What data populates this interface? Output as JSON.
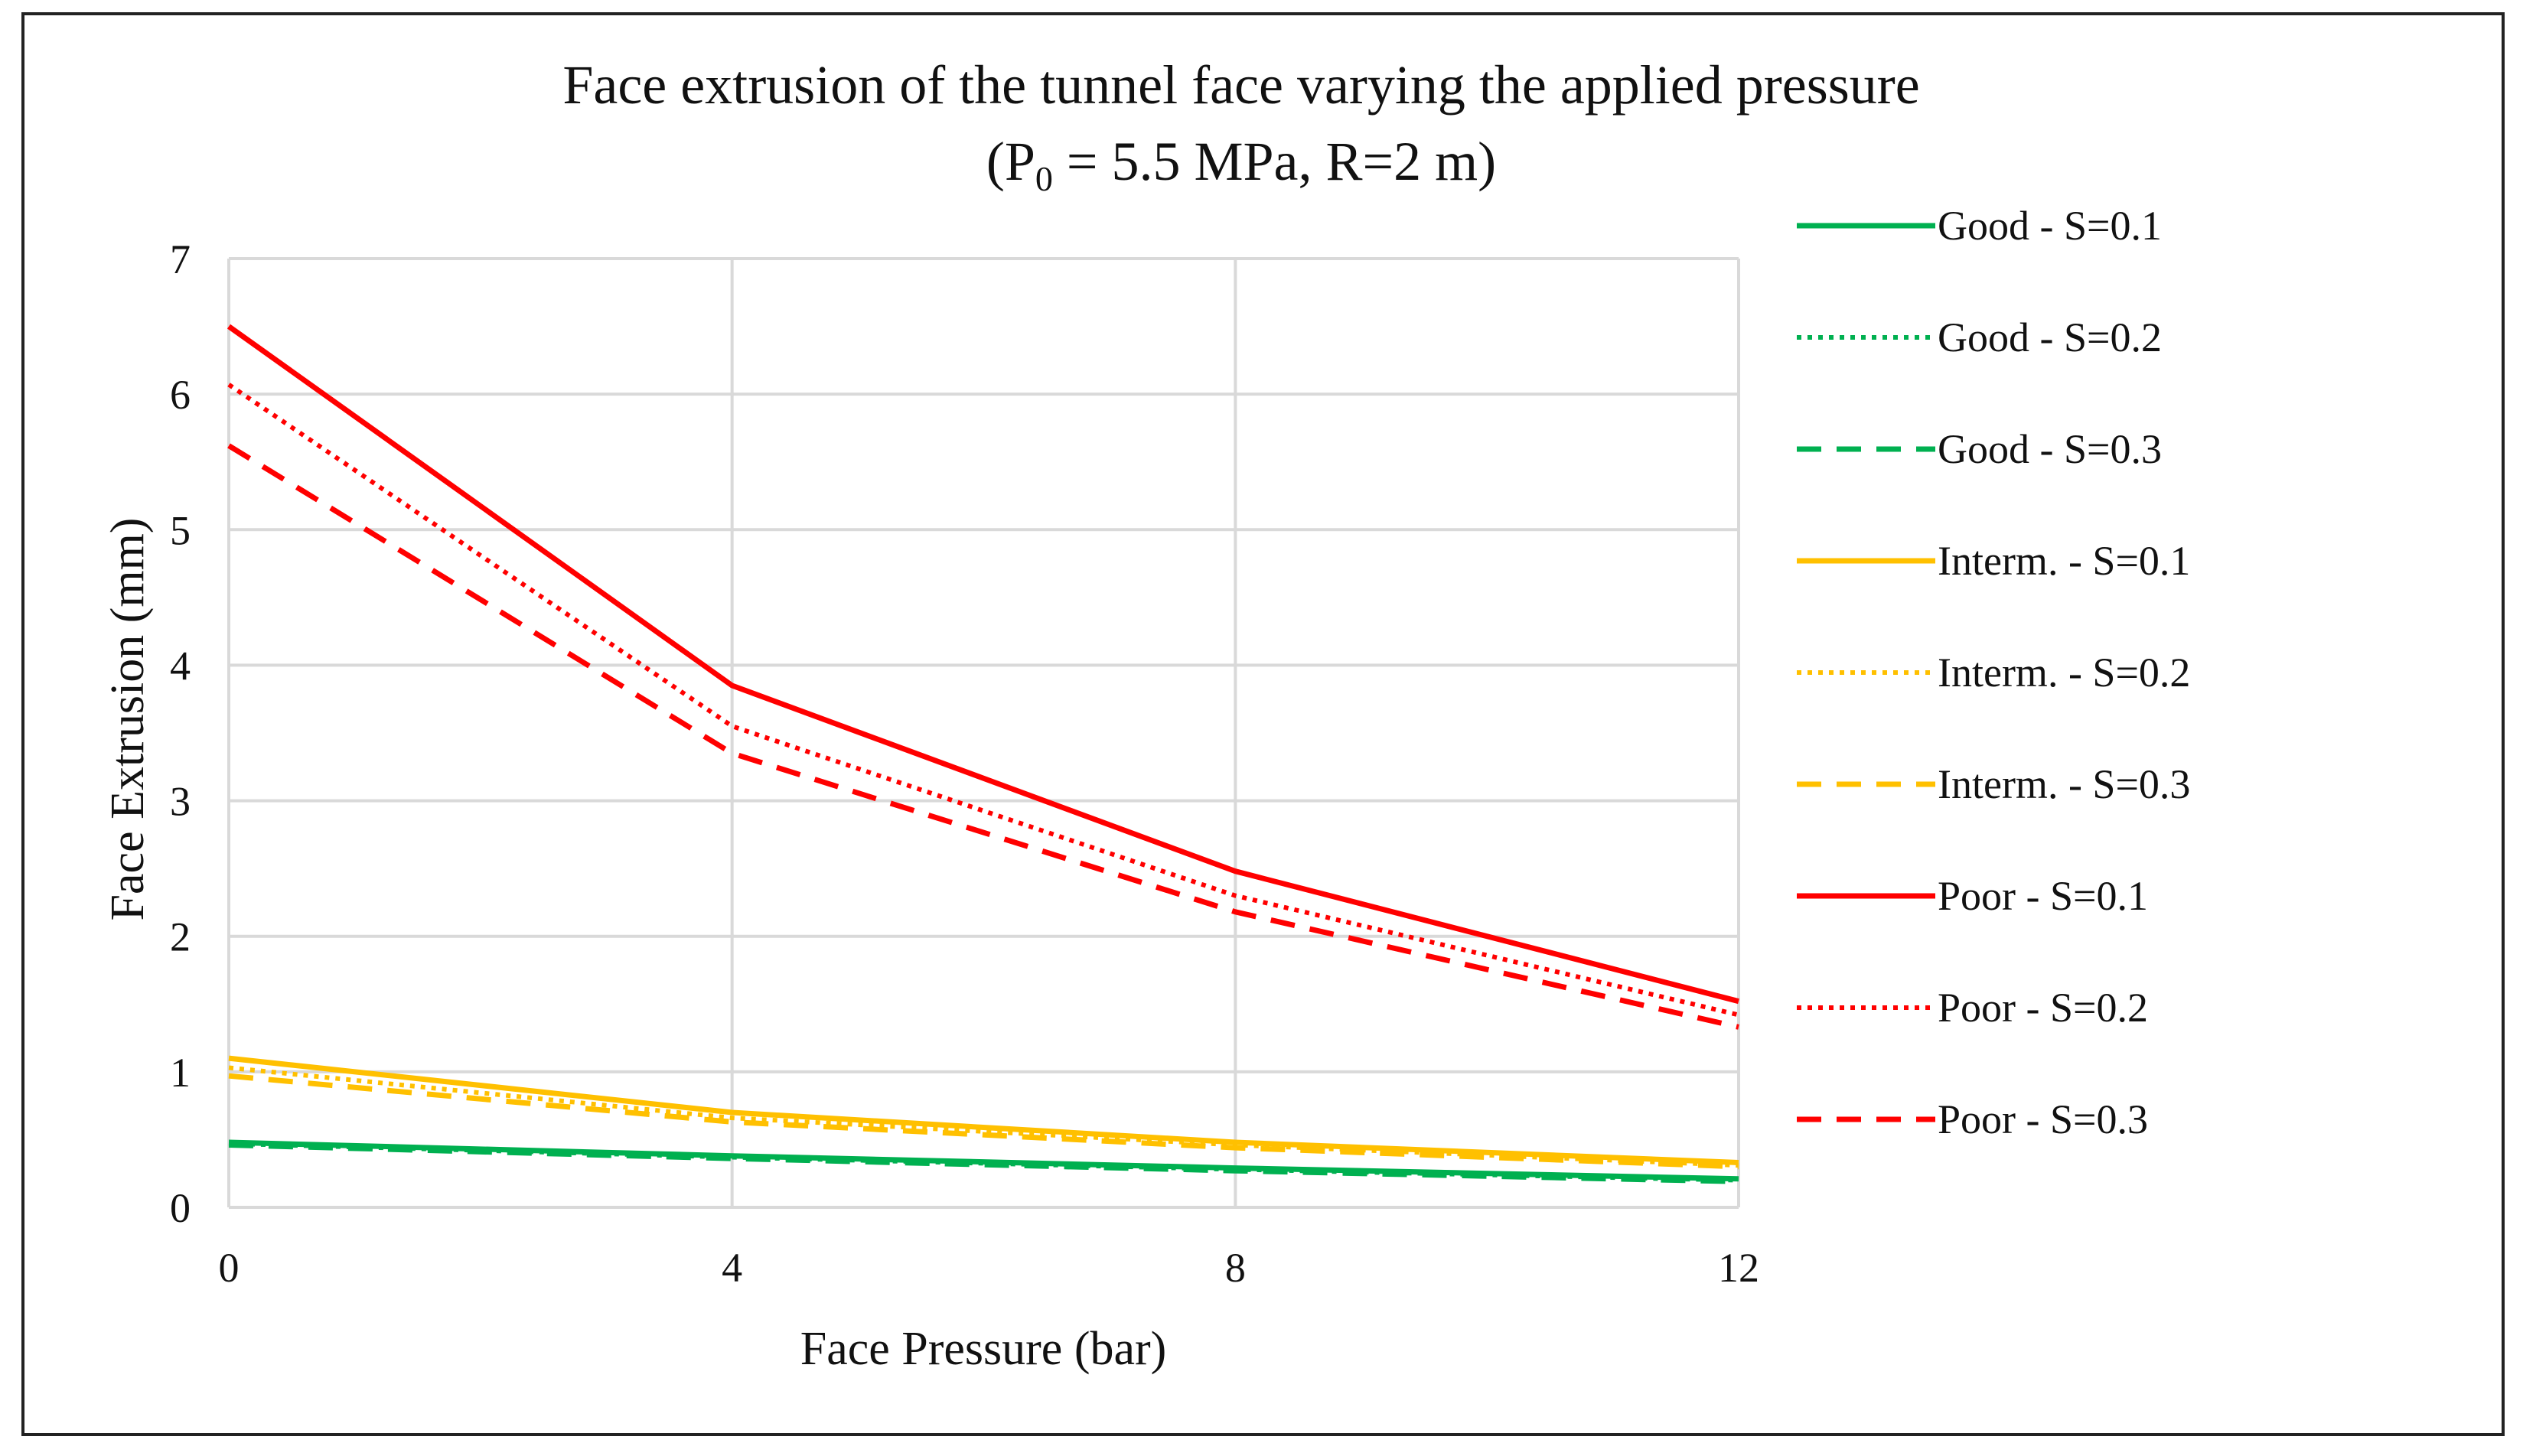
{
  "chart_data": {
    "type": "line",
    "title_main": "Face extrusion of the tunnel face varying the applied pressure",
    "title_sub_prefix": "(P",
    "title_sub_subscript": "0",
    "title_sub_suffix": " = 5.5 MPa, R=2 m)",
    "xlabel": "Face Pressure (bar)",
    "ylabel": "Face Extrusion (mm)",
    "x": [
      0,
      4,
      8,
      12
    ],
    "xlim": [
      0,
      12
    ],
    "ylim": [
      0,
      7
    ],
    "x_ticks": [
      0,
      4,
      8,
      12
    ],
    "y_ticks": [
      0,
      1,
      2,
      3,
      4,
      5,
      6,
      7
    ],
    "grid": true,
    "legend_position": "right",
    "series": [
      {
        "name": "Good - S=0.1",
        "color": "#00b050",
        "dash": "solid",
        "values": [
          0.48,
          0.38,
          0.29,
          0.21
        ]
      },
      {
        "name": "Good - S=0.2",
        "color": "#00b050",
        "dash": "dotted",
        "values": [
          0.47,
          0.37,
          0.28,
          0.2
        ]
      },
      {
        "name": "Good - S=0.3",
        "color": "#00b050",
        "dash": "dashed",
        "values": [
          0.46,
          0.36,
          0.27,
          0.19
        ]
      },
      {
        "name": "Interm. - S=0.1",
        "color": "#ffc000",
        "dash": "solid",
        "values": [
          1.1,
          0.7,
          0.48,
          0.33
        ]
      },
      {
        "name": "Interm. - S=0.2",
        "color": "#ffc000",
        "dash": "dotted",
        "values": [
          1.03,
          0.66,
          0.46,
          0.31
        ]
      },
      {
        "name": "Interm. - S=0.3",
        "color": "#ffc000",
        "dash": "dashed",
        "values": [
          0.97,
          0.63,
          0.44,
          0.3
        ]
      },
      {
        "name": "Poor - S=0.1",
        "color": "#ff0000",
        "dash": "solid",
        "values": [
          6.5,
          3.85,
          2.48,
          1.52
        ]
      },
      {
        "name": "Poor - S=0.2",
        "color": "#ff0000",
        "dash": "dotted",
        "values": [
          6.07,
          3.55,
          2.3,
          1.42
        ]
      },
      {
        "name": "Poor - S=0.3",
        "color": "#ff0000",
        "dash": "dashed",
        "values": [
          5.62,
          3.35,
          2.18,
          1.33
        ]
      }
    ]
  }
}
